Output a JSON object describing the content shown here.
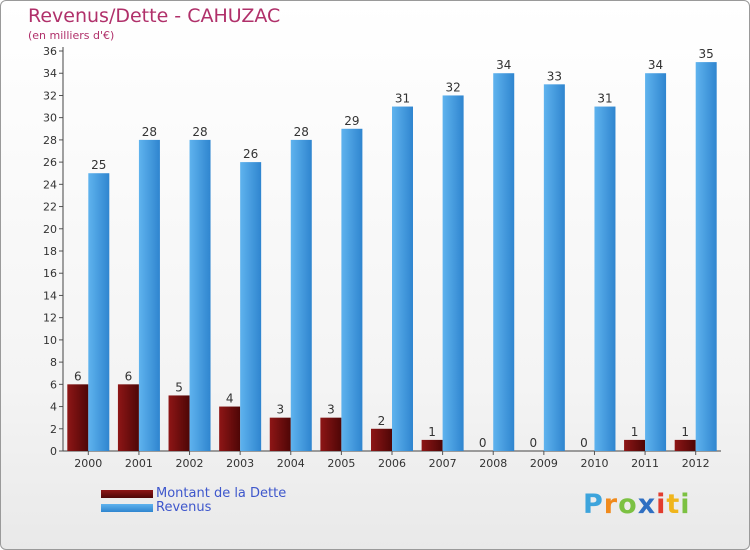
{
  "chart_data": {
    "type": "bar",
    "title": "Revenus/Dette - CAHUZAC",
    "subtitle": "(en milliers d'€)",
    "xlabel": "",
    "ylabel": "",
    "ylim": [
      0,
      36
    ],
    "ytick_step": 2,
    "grid": false,
    "categories": [
      "2000",
      "2001",
      "2002",
      "2003",
      "2004",
      "2005",
      "2006",
      "2007",
      "2008",
      "2009",
      "2010",
      "2011",
      "2012"
    ],
    "series": [
      {
        "name": "Montant de la Dette",
        "color": "#7a0c0c",
        "values": [
          6,
          6,
          5,
          4,
          3,
          3,
          2,
          1,
          0,
          0,
          0,
          1,
          1
        ]
      },
      {
        "name": "Revenus",
        "color": "#3f9ae0",
        "values": [
          25,
          28,
          28,
          26,
          28,
          29,
          31,
          32,
          34,
          33,
          31,
          34,
          35
        ]
      }
    ],
    "legend_position": "bottom-left"
  },
  "logo": {
    "text": "Proxiti",
    "letters": [
      "P",
      "r",
      "o",
      "x",
      "i",
      "t",
      "i"
    ],
    "colors": [
      "#3da4dc",
      "#f08a1c",
      "#7cc142",
      "#2f6fc2",
      "#e23c2e",
      "#f0b51c",
      "#7cc142"
    ]
  }
}
